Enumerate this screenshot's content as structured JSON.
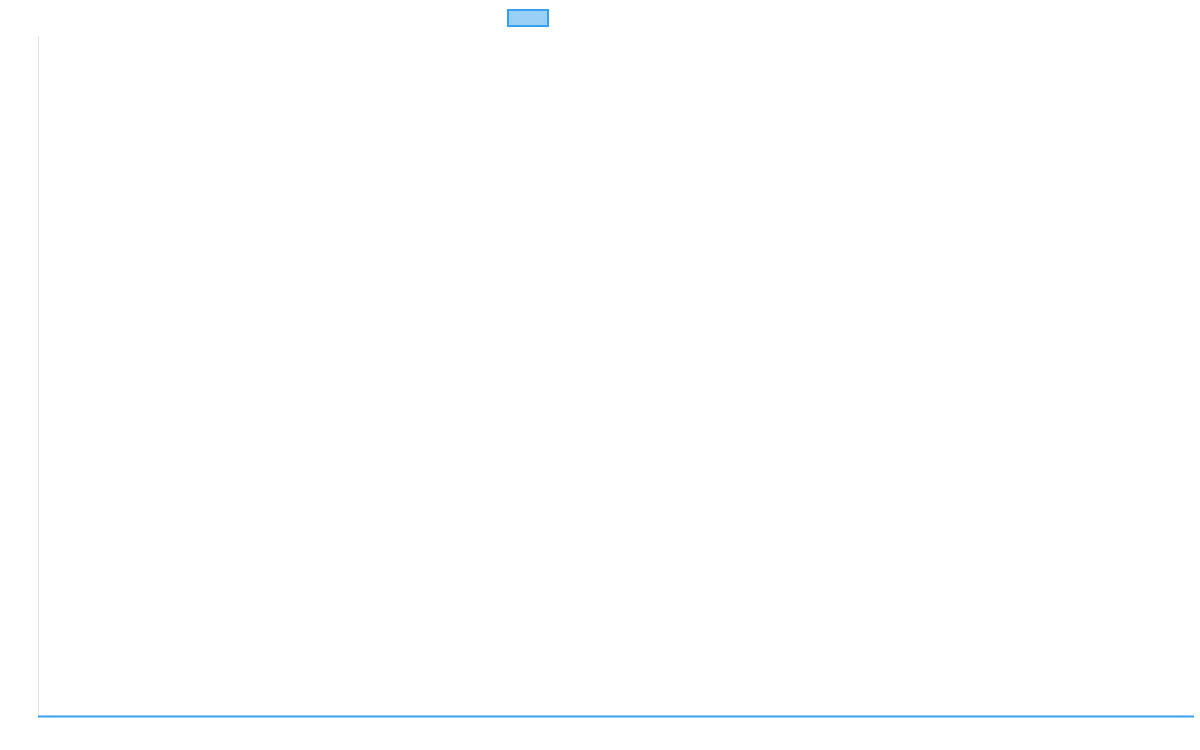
{
  "chart_data": {
    "type": "line",
    "title": "",
    "xlabel": "",
    "ylabel": "",
    "categories": [],
    "series": [
      {
        "values": [],
        "color": "#36a2eb",
        "fill": "#9ad0f5"
      }
    ],
    "legend": {
      "placement": "top-center",
      "label": ""
    },
    "grid": false,
    "axis_color": "#e5e5e5"
  }
}
